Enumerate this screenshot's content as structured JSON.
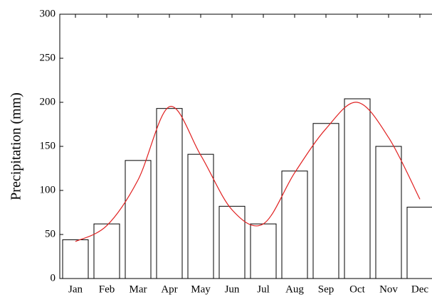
{
  "chart_data": {
    "type": "bar",
    "y_label": "Precipitation (mm)",
    "categories": [
      "Jan",
      "Feb",
      "Mar",
      "Apr",
      "May",
      "Jun",
      "Jul",
      "Aug",
      "Sep",
      "Oct",
      "Nov",
      "Dec"
    ],
    "series": [
      {
        "type": "bar",
        "color": "#000000",
        "values": [
          44,
          62,
          134,
          193,
          141,
          82,
          62,
          122,
          176,
          204,
          150,
          81
        ]
      },
      {
        "type": "line",
        "color": "#e02020",
        "values": [
          42,
          60,
          112,
          195,
          140,
          78,
          62,
          120,
          170,
          200,
          160,
          90
        ]
      }
    ],
    "ylim": [
      0,
      300
    ],
    "yticks": [
      0,
      50,
      100,
      150,
      200,
      250,
      300
    ]
  }
}
